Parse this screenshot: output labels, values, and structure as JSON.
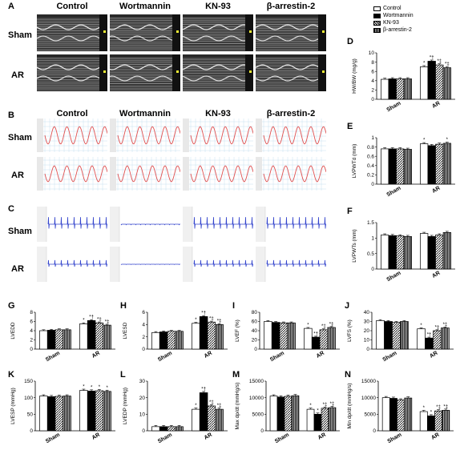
{
  "groups": [
    "Control",
    "Wortmannin",
    "KN-93",
    "β-arrestin-2"
  ],
  "rows": [
    "Sham",
    "AR"
  ],
  "panel_letters": {
    "A": "A",
    "B": "B",
    "C": "C",
    "D": "D",
    "E": "E",
    "F": "F",
    "G": "G",
    "H": "H",
    "I": "I",
    "J": "J",
    "K": "K",
    "L": "L",
    "M": "M",
    "N": "N"
  },
  "legend": [
    "Control",
    "Wortmannin",
    "KN-93",
    "β-arrestin-2"
  ],
  "colors": {
    "echo_bg": "#2a2a2a",
    "bp_trace": "#e05050",
    "ecg_trace": "#3344cc",
    "grid": "#c8e0f0"
  },
  "chart_data": [
    {
      "id": "D",
      "type": "bar",
      "ylabel": "HW/BW (mg/g)",
      "categories": [
        "Sham",
        "AR"
      ],
      "ylim": [
        0,
        10
      ],
      "yticks": [
        0,
        2,
        4,
        6,
        8,
        10
      ],
      "series": [
        {
          "name": "Control",
          "values": [
            4.3,
            7.0
          ]
        },
        {
          "name": "Wortmannin",
          "values": [
            4.4,
            8.2
          ]
        },
        {
          "name": "KN-93",
          "values": [
            4.4,
            7.4
          ]
        },
        {
          "name": "β-arrestin-2",
          "values": [
            4.4,
            6.8
          ]
        }
      ],
      "annotations": [
        [
          "",
          ""
        ],
        [
          "*",
          "*†",
          "*‡",
          "*‡"
        ]
      ]
    },
    {
      "id": "E",
      "type": "bar",
      "ylabel": "LVPWTd (mm)",
      "categories": [
        "Sham",
        "AR"
      ],
      "ylim": [
        0,
        1.0
      ],
      "yticks": [
        0.0,
        0.2,
        0.4,
        0.6,
        0.8,
        1.0
      ],
      "series": [
        {
          "name": "Control",
          "values": [
            0.76,
            0.87
          ]
        },
        {
          "name": "Wortmannin",
          "values": [
            0.76,
            0.83
          ]
        },
        {
          "name": "KN-93",
          "values": [
            0.76,
            0.86
          ]
        },
        {
          "name": "β-arrestin-2",
          "values": [
            0.75,
            0.88
          ]
        }
      ],
      "annotations": [
        [
          "",
          ""
        ],
        [
          "*",
          "",
          "",
          "*"
        ]
      ]
    },
    {
      "id": "F",
      "type": "bar",
      "ylabel": "LVPWTs (mm)",
      "categories": [
        "Sham",
        "AR"
      ],
      "ylim": [
        0,
        1.5
      ],
      "yticks": [
        0.0,
        0.5,
        1.0,
        1.5
      ],
      "series": [
        {
          "name": "Control",
          "values": [
            1.1,
            1.15
          ]
        },
        {
          "name": "Wortmannin",
          "values": [
            1.08,
            1.05
          ]
        },
        {
          "name": "KN-93",
          "values": [
            1.07,
            1.1
          ]
        },
        {
          "name": "β-arrestin-2",
          "values": [
            1.05,
            1.18
          ]
        }
      ],
      "annotations": [
        [
          "",
          ""
        ],
        [
          "",
          "",
          "",
          ""
        ]
      ]
    },
    {
      "id": "G",
      "type": "bar",
      "ylabel": "LVEDD",
      "categories": [
        "Sham",
        "AR"
      ],
      "ylim": [
        0,
        8
      ],
      "yticks": [
        0,
        2,
        4,
        6,
        8
      ],
      "series": [
        {
          "name": "Control",
          "values": [
            4.0,
            5.5
          ]
        },
        {
          "name": "Wortmannin",
          "values": [
            4.1,
            6.2
          ]
        },
        {
          "name": "KN-93",
          "values": [
            4.2,
            5.7
          ]
        },
        {
          "name": "β-arrestin-2",
          "values": [
            4.2,
            5.2
          ]
        }
      ],
      "annotations": [
        [
          "",
          ""
        ],
        [
          "*",
          "*†",
          "*‡",
          "*‡"
        ]
      ]
    },
    {
      "id": "H",
      "type": "bar",
      "ylabel": "LVESD",
      "categories": [
        "Sham",
        "AR"
      ],
      "ylim": [
        0,
        6
      ],
      "yticks": [
        0,
        2,
        4,
        6
      ],
      "series": [
        {
          "name": "Control",
          "values": [
            2.7,
            4.2
          ]
        },
        {
          "name": "Wortmannin",
          "values": [
            2.8,
            5.3
          ]
        },
        {
          "name": "KN-93",
          "values": [
            2.9,
            4.4
          ]
        },
        {
          "name": "β-arrestin-2",
          "values": [
            2.9,
            4.0
          ]
        }
      ],
      "annotations": [
        [
          "",
          ""
        ],
        [
          "*",
          "*†",
          "*‡",
          "*‡"
        ]
      ]
    },
    {
      "id": "I",
      "type": "bar",
      "ylabel": "LVEF (%)",
      "categories": [
        "Sham",
        "AR"
      ],
      "ylim": [
        0,
        80
      ],
      "yticks": [
        0,
        20,
        40,
        60,
        80
      ],
      "series": [
        {
          "name": "Control",
          "values": [
            60,
            45
          ]
        },
        {
          "name": "Wortmannin",
          "values": [
            58,
            26
          ]
        },
        {
          "name": "KN-93",
          "values": [
            57,
            42
          ]
        },
        {
          "name": "β-arrestin-2",
          "values": [
            57,
            47
          ]
        }
      ],
      "annotations": [
        [
          "",
          ""
        ],
        [
          "*",
          "*†",
          "*‡",
          "*‡"
        ]
      ]
    },
    {
      "id": "J",
      "type": "bar",
      "ylabel": "LVFS (%)",
      "categories": [
        "Sham",
        "AR"
      ],
      "ylim": [
        0,
        40
      ],
      "yticks": [
        0,
        10,
        20,
        30,
        40
      ],
      "series": [
        {
          "name": "Control",
          "values": [
            31,
            22
          ]
        },
        {
          "name": "Wortmannin",
          "values": [
            30,
            12
          ]
        },
        {
          "name": "KN-93",
          "values": [
            29,
            20
          ]
        },
        {
          "name": "β-arrestin-2",
          "values": [
            30,
            23
          ]
        }
      ],
      "annotations": [
        [
          "",
          ""
        ],
        [
          "*",
          "*†",
          "*‡",
          "*‡"
        ]
      ]
    },
    {
      "id": "K",
      "type": "bar",
      "ylabel": "LVESP (mmHg)",
      "categories": [
        "Sham",
        "AR"
      ],
      "ylim": [
        0,
        150
      ],
      "yticks": [
        0,
        50,
        100,
        150
      ],
      "series": [
        {
          "name": "Control",
          "values": [
            105,
            122
          ]
        },
        {
          "name": "Wortmannin",
          "values": [
            103,
            120
          ]
        },
        {
          "name": "KN-93",
          "values": [
            104,
            121
          ]
        },
        {
          "name": "β-arrestin-2",
          "values": [
            105,
            119
          ]
        }
      ],
      "annotations": [
        [
          "",
          ""
        ],
        [
          "*",
          "*",
          "*",
          "*"
        ]
      ]
    },
    {
      "id": "L",
      "type": "bar",
      "ylabel": "LVEDP (mmHg)",
      "categories": [
        "Sham",
        "AR"
      ],
      "ylim": [
        0,
        30
      ],
      "yticks": [
        0,
        10,
        20,
        30
      ],
      "series": [
        {
          "name": "Control",
          "values": [
            2.5,
            13
          ]
        },
        {
          "name": "Wortmannin",
          "values": [
            2.5,
            23
          ]
        },
        {
          "name": "KN-93",
          "values": [
            2.5,
            15
          ]
        },
        {
          "name": "β-arrestin-2",
          "values": [
            2.5,
            13
          ]
        }
      ],
      "annotations": [
        [
          "",
          ""
        ],
        [
          "*",
          "*†",
          "*‡",
          "*‡"
        ]
      ]
    },
    {
      "id": "M",
      "type": "bar",
      "ylabel": "Max dp/dt (mmHg/s)",
      "categories": [
        "Sham",
        "AR"
      ],
      "ylim": [
        0,
        15000
      ],
      "yticks": [
        0,
        5000,
        10000,
        15000
      ],
      "series": [
        {
          "name": "Control",
          "values": [
            10500,
            6500
          ]
        },
        {
          "name": "Wortmannin",
          "values": [
            10200,
            5000
          ]
        },
        {
          "name": "KN-93",
          "values": [
            10400,
            6800
          ]
        },
        {
          "name": "β-arrestin-2",
          "values": [
            10600,
            7000
          ]
        }
      ],
      "annotations": [
        [
          "",
          ""
        ],
        [
          "*",
          "*",
          "*‡",
          "*‡"
        ]
      ]
    },
    {
      "id": "N",
      "type": "bar",
      "ylabel": "Min dp/dt (mmHg/s)",
      "categories": [
        "Sham",
        "AR"
      ],
      "ylim": [
        0,
        15000
      ],
      "yticks": [
        0,
        5000,
        10000,
        15000
      ],
      "series": [
        {
          "name": "Control",
          "values": [
            10000,
            5800
          ]
        },
        {
          "name": "Wortmannin",
          "values": [
            9800,
            4500
          ]
        },
        {
          "name": "KN-93",
          "values": [
            9300,
            6000
          ]
        },
        {
          "name": "β-arrestin-2",
          "values": [
            9900,
            6200
          ]
        }
      ],
      "annotations": [
        [
          "",
          ""
        ],
        [
          "*",
          "*",
          "*‡",
          "*‡"
        ]
      ]
    }
  ]
}
